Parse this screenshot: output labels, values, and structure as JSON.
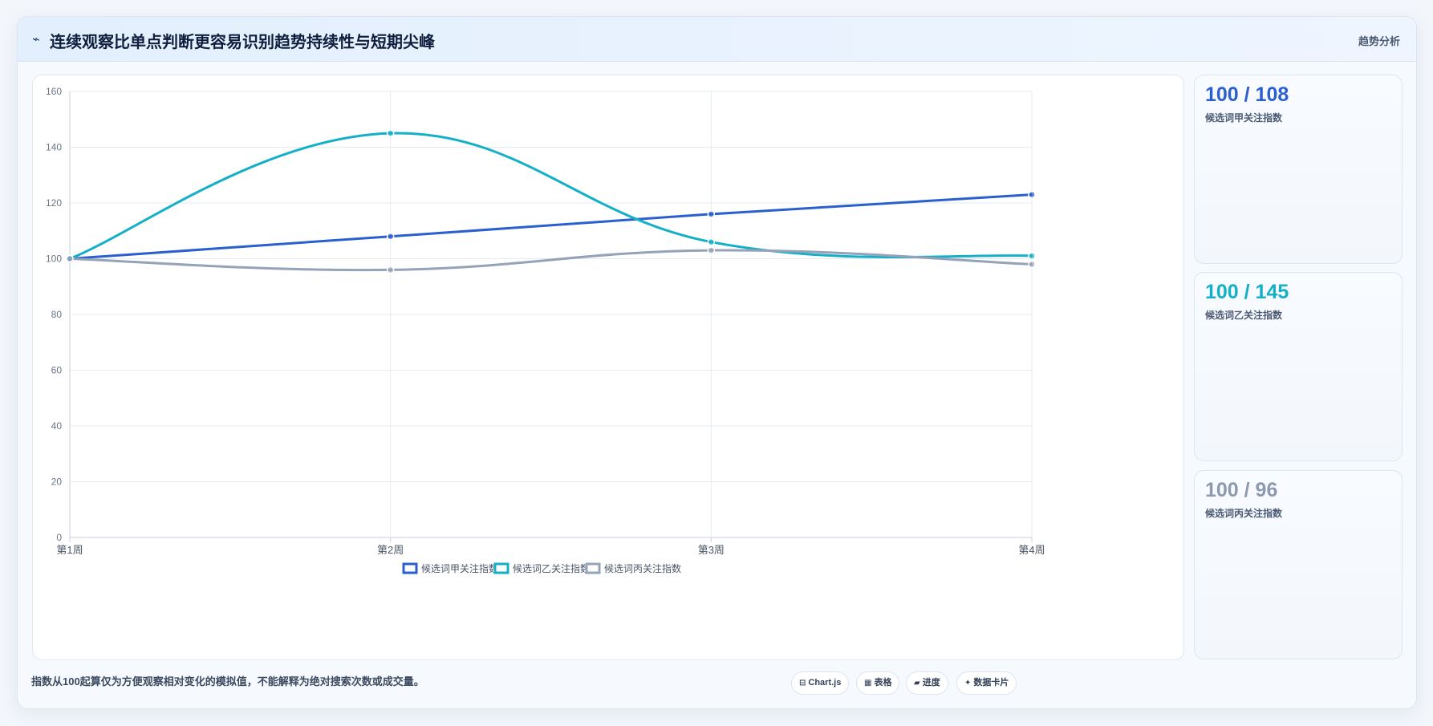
{
  "header": {
    "icon": "⌁",
    "title": "连续观察比单点判断更容易识别趋势持续性与短期尖峰",
    "tag": "趋势分析"
  },
  "cards": [
    {
      "value": "100 / 108",
      "label": "候选词甲关注指数",
      "color": "#2b5fd0"
    },
    {
      "value": "100 / 145",
      "label": "候选词乙关注指数",
      "color": "#13b0c8"
    },
    {
      "value": "100 / 96",
      "label": "候选词丙关注指数",
      "color": "#8c99ae"
    }
  ],
  "footnote": "指数从100起算仅为方便观察相对变化的模拟值，不能解释为绝对搜索次数或成交量。",
  "chips": [
    {
      "icon": "⊟",
      "label": "Chart.js",
      "name": "chip-chartjs-button"
    },
    {
      "icon": "▦",
      "label": "表格",
      "name": "chip-table-button"
    },
    {
      "icon": "▰",
      "label": "进度",
      "name": "chip-progress-button"
    },
    {
      "icon": "✦",
      "label": "数据卡片",
      "name": "chip-datacard-button"
    }
  ],
  "chart_data": {
    "type": "line",
    "categories": [
      "第1周",
      "第2周",
      "第3周",
      "第4周"
    ],
    "ylim": [
      0,
      160
    ],
    "yticks": [
      0,
      20,
      40,
      60,
      80,
      100,
      120,
      140,
      160
    ],
    "grid": true,
    "legend": "bottom",
    "series": [
      {
        "name": "候选词甲关注指数",
        "values": [
          100,
          108,
          116,
          123
        ],
        "color": "#2b5fd0",
        "smooth": false
      },
      {
        "name": "候选词乙关注指数",
        "values": [
          100,
          145,
          106,
          101
        ],
        "color": "#13b0c8",
        "smooth": true
      },
      {
        "name": "候选词丙关注指数",
        "values": [
          100,
          96,
          103,
          98
        ],
        "color": "#94a3b8",
        "smooth": true
      }
    ]
  }
}
